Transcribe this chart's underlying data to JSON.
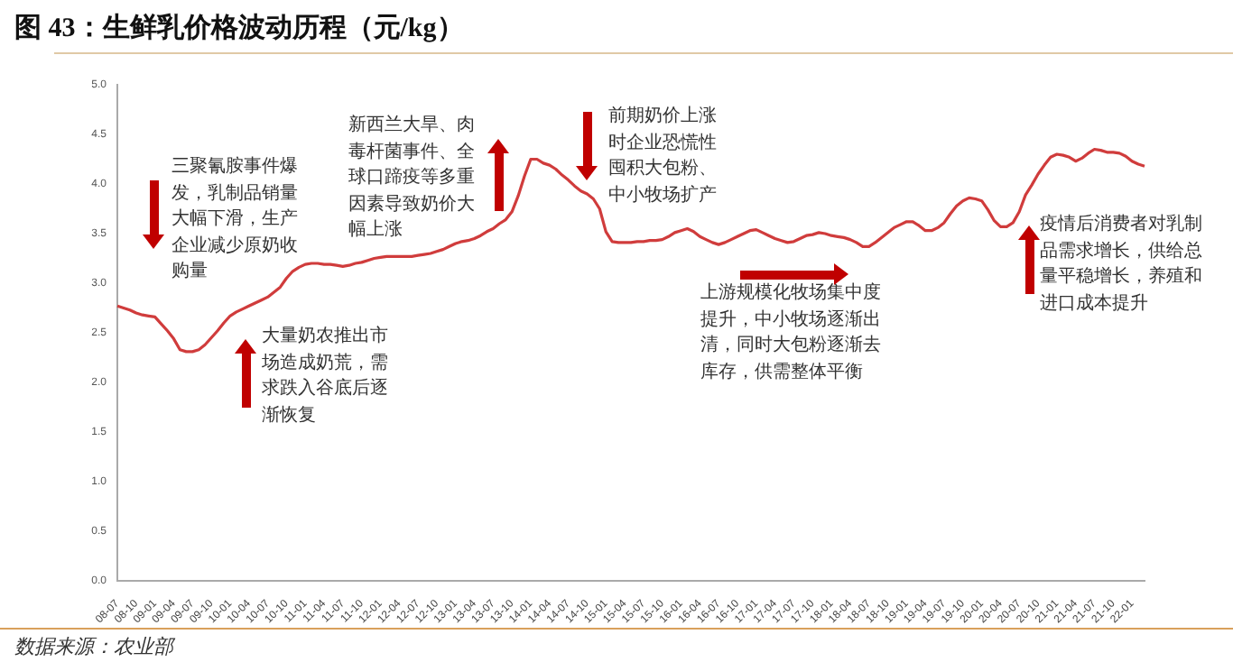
{
  "chart_data": {
    "type": "line",
    "title": "图 43：生鲜乳价格波动历程（元/kg）",
    "categories": [
      "08-07",
      null,
      null,
      "08-10",
      null,
      null,
      "09-01",
      null,
      null,
      "09-04",
      null,
      null,
      "09-07",
      null,
      null,
      "09-10",
      null,
      null,
      "10-01",
      null,
      null,
      "10-04",
      null,
      null,
      "10-07",
      null,
      null,
      "10-10",
      null,
      null,
      "11-01",
      null,
      null,
      "11-04",
      null,
      null,
      "11-07",
      null,
      null,
      "11-10",
      null,
      null,
      "12-01",
      null,
      null,
      "12-04",
      null,
      null,
      "12-07",
      null,
      null,
      "12-10",
      null,
      null,
      "13-01",
      null,
      null,
      "13-04",
      null,
      null,
      "13-07",
      null,
      null,
      "13-10",
      null,
      null,
      "14-01",
      null,
      null,
      "14-04",
      null,
      null,
      "14-07",
      null,
      null,
      "14-10",
      null,
      null,
      "15-01",
      null,
      null,
      "15-04",
      null,
      null,
      "15-07",
      null,
      null,
      "15-10",
      null,
      null,
      "16-01",
      null,
      null,
      "16-04",
      null,
      null,
      "16-07",
      null,
      null,
      "16-10",
      null,
      null,
      "17-01",
      null,
      null,
      "17-04",
      null,
      null,
      "17-07",
      null,
      null,
      "17-10",
      null,
      null,
      "18-01",
      null,
      null,
      "18-04",
      null,
      null,
      "18-07",
      null,
      null,
      "18-10",
      null,
      null,
      "19-01",
      null,
      null,
      "19-04",
      null,
      null,
      "19-07",
      null,
      null,
      "19-10",
      null,
      null,
      "20-01",
      null,
      null,
      "20-04",
      null,
      null,
      "20-07",
      null,
      null,
      "20-10",
      null,
      null,
      "21-01",
      null,
      null,
      "21-04",
      null,
      null,
      "21-07",
      null,
      null,
      "21-10",
      null,
      null,
      "22-01",
      null,
      null
    ],
    "series": [
      {
        "color": "#d03c3c",
        "values": [
          2.77,
          2.75,
          2.73,
          2.7,
          2.68,
          2.67,
          2.66,
          2.59,
          2.52,
          2.44,
          2.33,
          2.31,
          2.31,
          2.33,
          2.38,
          2.45,
          2.52,
          2.6,
          2.67,
          2.71,
          2.74,
          2.77,
          2.8,
          2.83,
          2.86,
          2.91,
          2.96,
          3.05,
          3.12,
          3.16,
          3.19,
          3.2,
          3.2,
          3.19,
          3.19,
          3.18,
          3.17,
          3.18,
          3.2,
          3.21,
          3.23,
          3.25,
          3.26,
          3.27,
          3.27,
          3.27,
          3.27,
          3.27,
          3.28,
          3.29,
          3.3,
          3.32,
          3.34,
          3.37,
          3.4,
          3.42,
          3.43,
          3.45,
          3.48,
          3.52,
          3.55,
          3.6,
          3.64,
          3.72,
          3.88,
          4.08,
          4.25,
          4.25,
          4.21,
          4.19,
          4.15,
          4.09,
          4.04,
          3.98,
          3.93,
          3.9,
          3.85,
          3.75,
          3.52,
          3.42,
          3.41,
          3.41,
          3.41,
          3.42,
          3.42,
          3.43,
          3.43,
          3.44,
          3.47,
          3.51,
          3.53,
          3.55,
          3.52,
          3.47,
          3.44,
          3.41,
          3.39,
          3.41,
          3.44,
          3.47,
          3.5,
          3.53,
          3.54,
          3.51,
          3.48,
          3.45,
          3.43,
          3.41,
          3.42,
          3.45,
          3.48,
          3.49,
          3.51,
          3.5,
          3.48,
          3.47,
          3.46,
          3.44,
          3.41,
          3.37,
          3.37,
          3.41,
          3.46,
          3.51,
          3.56,
          3.59,
          3.62,
          3.62,
          3.58,
          3.53,
          3.53,
          3.56,
          3.61,
          3.7,
          3.78,
          3.83,
          3.86,
          3.85,
          3.83,
          3.74,
          3.63,
          3.57,
          3.57,
          3.61,
          3.72,
          3.89,
          3.99,
          4.1,
          4.19,
          4.27,
          4.3,
          4.29,
          4.27,
          4.23,
          4.26,
          4.31,
          4.35,
          4.34,
          4.32,
          4.32,
          4.31,
          4.28,
          4.23,
          4.2,
          4.18
        ]
      }
    ],
    "ylim": [
      0,
      5
    ],
    "yticks": [
      {
        "value": 0,
        "label": "0.0"
      },
      {
        "value": 0.5,
        "label": "0.5"
      },
      {
        "value": 1,
        "label": "1.0"
      },
      {
        "value": 1.5,
        "label": "1.5"
      },
      {
        "value": 2,
        "label": "2.0"
      },
      {
        "value": 2.5,
        "label": "2.5"
      },
      {
        "value": 3,
        "label": "3.0"
      },
      {
        "value": 3.5,
        "label": "3.5"
      },
      {
        "value": 4,
        "label": "4.0"
      },
      {
        "value": 4.5,
        "label": "4.5"
      },
      {
        "value": 5,
        "label": "5.0"
      }
    ],
    "marker": "none",
    "line_style": "solid",
    "annotations": [
      "三聚氰胺事件爆发，乳制品销量大幅下滑，生产企业减少原奶收购量",
      "大量奶农推出市场造成奶荒，需求跌入谷底后逐渐恢复",
      "新西兰大旱、肉毒杆菌事件、全球口蹄疫等多重因素导致奶价大幅上涨",
      "前期奶价上涨时企业恐慌性囤积大包粉、中小牧场扩产",
      "上游规模化牧场集中度提升，中小牧场逐渐出清，同时大包粉逐渐去库存，供需整体平衡",
      "疫情后消费者对乳制品需求增长，供给总量平稳增长，养殖和进口成本提升",
      "数据来源：农业部"
    ]
  }
}
